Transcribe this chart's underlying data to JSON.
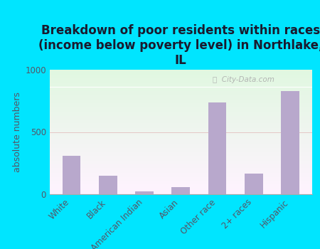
{
  "title": "Breakdown of poor residents within races\n(income below poverty level) in Northlake,\nIL",
  "categories": [
    "White",
    "Black",
    "American Indian",
    "Asian",
    "Other race",
    "2+ races",
    "Hispanic"
  ],
  "values": [
    310,
    150,
    25,
    55,
    740,
    165,
    830
  ],
  "bar_color": "#b8a8cc",
  "ylabel": "absolute numbers",
  "ylim": [
    0,
    1000
  ],
  "yticks": [
    0,
    500,
    1000
  ],
  "background_outer": "#00e5ff",
  "title_fontsize": 12,
  "ylabel_fontsize": 9,
  "tick_fontsize": 8.5,
  "title_color": "#1a1a2e",
  "tick_color": "#555566",
  "watermark_text": "City-Data.com",
  "watermark_color": "#aaaaaa"
}
